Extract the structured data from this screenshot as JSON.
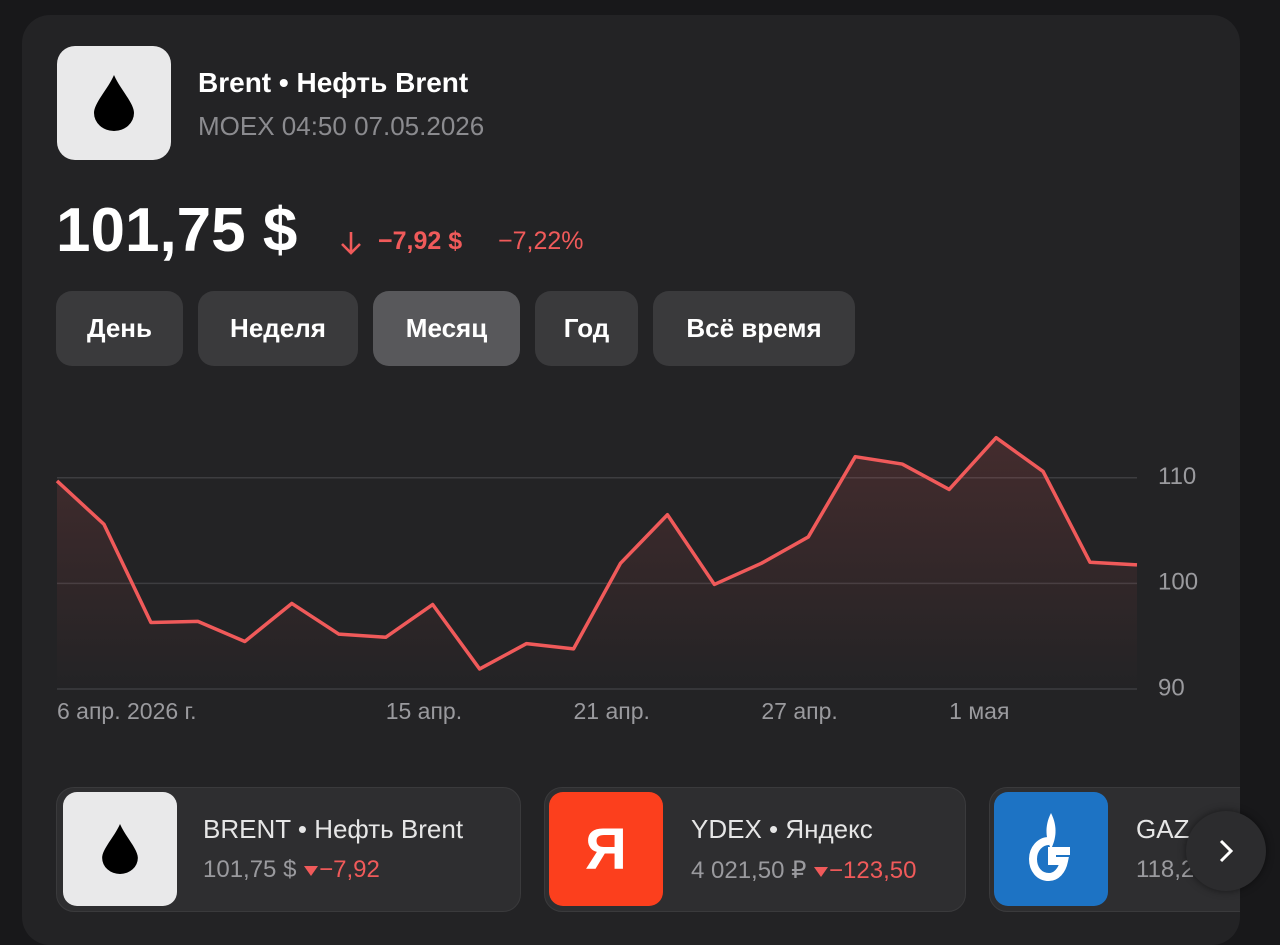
{
  "header": {
    "title": "Brent • Нефть Brent",
    "subtitle": "MOEX 04:50 07.05.2026"
  },
  "price": {
    "value": "101,75 $",
    "change": "−7,92 $",
    "change_percent": "−7,22%"
  },
  "tabs": [
    "День",
    "Неделя",
    "Месяц",
    "Год",
    "Всё время"
  ],
  "active_tab": 2,
  "chart_data": {
    "type": "line",
    "categories": [
      "6 апр. 2026 г.",
      null,
      null,
      null,
      null,
      null,
      null,
      "15 апр.",
      null,
      null,
      null,
      "21 апр.",
      null,
      null,
      null,
      "27 апр.",
      null,
      null,
      null,
      "1 мая",
      null,
      null,
      null,
      null
    ],
    "values": [
      109.7,
      105.6,
      96.3,
      96.4,
      94.5,
      98.1,
      95.2,
      94.9,
      98.0,
      91.9,
      94.3,
      93.8,
      101.9,
      106.5,
      99.9,
      101.9,
      104.4,
      112.0,
      111.3,
      108.9,
      113.8,
      110.6,
      102.0,
      101.75
    ],
    "color": "#f05a5a",
    "ylim": [
      90,
      115
    ],
    "yticks": [
      90,
      100,
      110
    ],
    "grid": true
  },
  "tickers": [
    {
      "title": "BRENT • Нефть Brent",
      "price": "101,75 $",
      "change": "−7,92"
    },
    {
      "title": "YDEX • Яндекс",
      "price": "4 021,50 ₽",
      "change": "−123,50",
      "icon": "Я"
    },
    {
      "title": "GAZ",
      "price": "118,2"
    }
  ]
}
